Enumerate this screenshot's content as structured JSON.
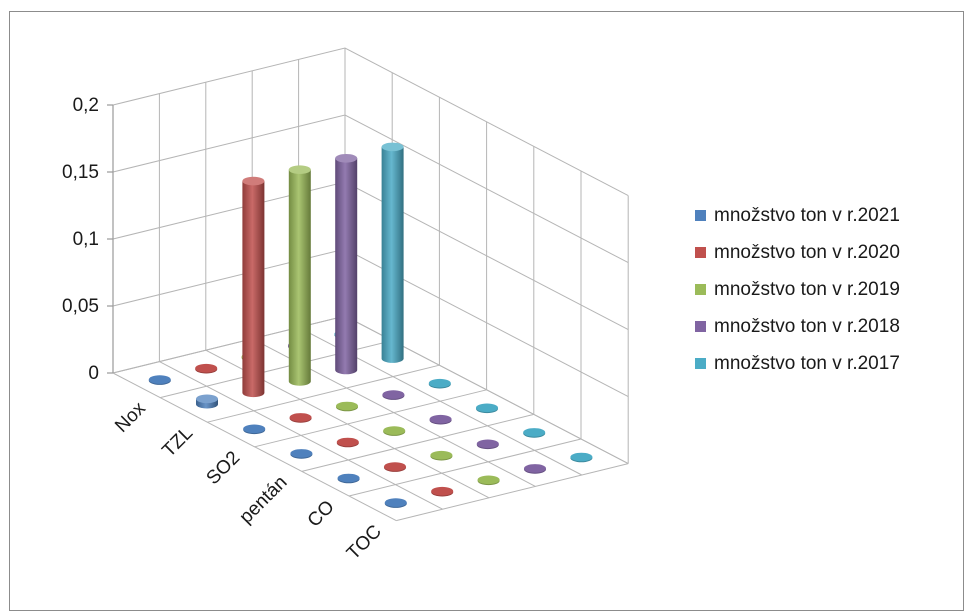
{
  "chart_data": {
    "type": "bar",
    "variant": "3d-cylinder",
    "title": "",
    "xlabel": "",
    "ylabel": "",
    "ylim": [
      0,
      0.2
    ],
    "y_ticks": [
      "0",
      "0,05",
      "0,1",
      "0,15",
      "0,2"
    ],
    "y_tick_values": [
      0,
      0.05,
      0.1,
      0.15,
      0.2
    ],
    "grid": true,
    "legend_position": "right",
    "categories": [
      "Nox",
      "TZL",
      "SO2",
      "pentán",
      "CO",
      "TOC"
    ],
    "series": [
      {
        "name": "množstvo ton v r.2021",
        "color": "#4f81bd",
        "values": [
          0,
          0.004,
          0,
          0,
          0,
          0
        ]
      },
      {
        "name": "množstvo ton v r.2020",
        "color": "#c0504d",
        "values": [
          0,
          0.158,
          0,
          0,
          0,
          0
        ]
      },
      {
        "name": "množstvo ton v r.2019",
        "color": "#9bbb59",
        "values": [
          0,
          0.158,
          0,
          0,
          0,
          0
        ]
      },
      {
        "name": "množstvo ton v r.2018",
        "color": "#8064a2",
        "values": [
          0,
          0.158,
          0,
          0,
          0,
          0
        ]
      },
      {
        "name": "množstvo ton v r.2017",
        "color": "#4bacc6",
        "values": [
          0,
          0.158,
          0,
          0,
          0,
          0
        ]
      }
    ]
  }
}
